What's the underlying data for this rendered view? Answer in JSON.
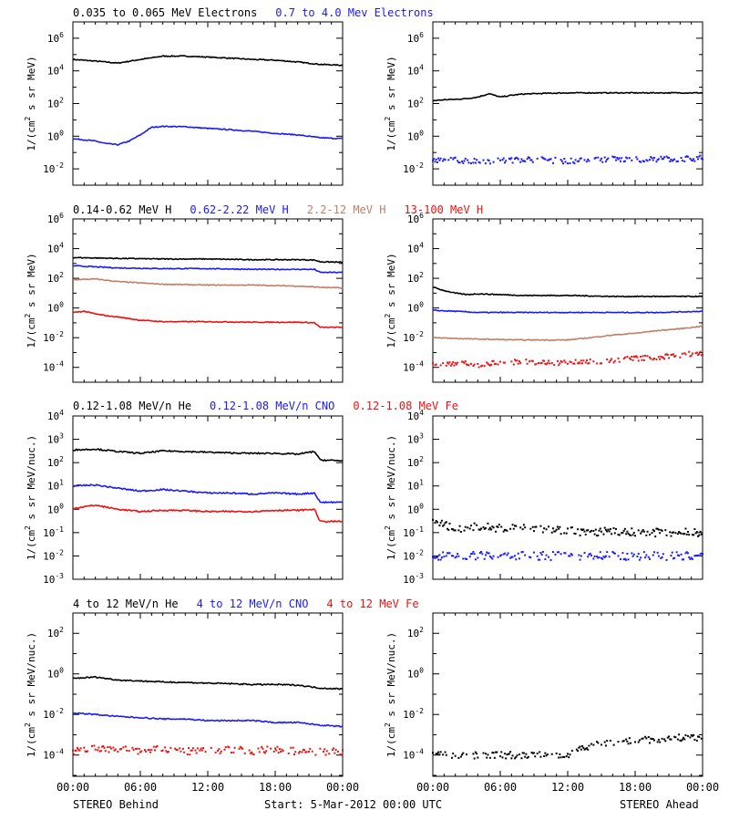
{
  "colors": {
    "black": "#000000",
    "blue": "#1a1aff",
    "tan": "#c08068",
    "red": "#ee1111",
    "frame": "#000000"
  },
  "figure": {
    "footer_left": "STEREO Behind",
    "footer_center": "Start:  5-Mar-2012 00:00 UTC",
    "footer_right": "STEREO Ahead",
    "x_ticks": [
      "00:00",
      "06:00",
      "12:00",
      "18:00",
      "00:00"
    ]
  },
  "rows": [
    {
      "legend": [
        {
          "text": "0.035 to 0.065 MeV Electrons",
          "color": "black"
        },
        {
          "text": "0.7 to 4.0 Mev Electrons",
          "color": "blue"
        }
      ],
      "ylabel_parts": [
        "1/(cm",
        "2",
        " s sr MeV)"
      ]
    },
    {
      "legend": [
        {
          "text": "0.14-0.62 MeV H",
          "color": "black"
        },
        {
          "text": "0.62-2.22 MeV H",
          "color": "blue"
        },
        {
          "text": "2.2-12 MeV H",
          "color": "tan"
        },
        {
          "text": "13-100 MeV H",
          "color": "red"
        }
      ],
      "ylabel_parts": [
        "1/(cm",
        "2",
        " s sr MeV)"
      ]
    },
    {
      "legend": [
        {
          "text": "0.12-1.08 MeV/n He",
          "color": "black"
        },
        {
          "text": "0.12-1.08 MeV/n CNO",
          "color": "blue"
        },
        {
          "text": "0.12-1.08 MeV Fe",
          "color": "red"
        }
      ],
      "ylabel_parts": [
        "1/(cm",
        "2",
        " s sr MeV/nuc.)"
      ]
    },
    {
      "legend": [
        {
          "text": "4 to 12 MeV/n He",
          "color": "black"
        },
        {
          "text": "4 to 12 MeV/n CNO",
          "color": "blue"
        },
        {
          "text": "4 to 12 MeV Fe",
          "color": "red"
        }
      ],
      "ylabel_parts": [
        "1/(cm",
        "2",
        " s sr MeV/nuc.)"
      ]
    }
  ],
  "chart_data": [
    {
      "type": "line",
      "panel": "r1-behind",
      "ylog": true,
      "ylim": [
        0.001,
        10000000
      ],
      "ytick_exponents": [
        -2,
        0,
        2,
        4,
        6
      ],
      "xlim": [
        0,
        24
      ],
      "series": [
        {
          "color": "black",
          "style": "line",
          "x": [
            0,
            2,
            4,
            6,
            8,
            10,
            12,
            14,
            16,
            18,
            20,
            22,
            24
          ],
          "y": [
            50000,
            40000,
            30000,
            50000,
            80000,
            80000,
            70000,
            60000,
            50000,
            45000,
            35000,
            25000,
            22000
          ]
        },
        {
          "color": "blue",
          "style": "line",
          "x": [
            0,
            1,
            2,
            3,
            4,
            5,
            6,
            7,
            8,
            10,
            12,
            14,
            16,
            18,
            20,
            22,
            24
          ],
          "y": [
            0.7,
            0.6,
            0.5,
            0.35,
            0.3,
            0.5,
            1.2,
            3.5,
            4,
            3.8,
            3,
            2.5,
            2,
            1.5,
            1.2,
            0.8,
            0.7
          ]
        }
      ]
    },
    {
      "type": "line",
      "panel": "r1-ahead",
      "ylog": true,
      "ylim": [
        0.001,
        10000000
      ],
      "ytick_exponents": [
        -2,
        0,
        2,
        4,
        6
      ],
      "xlim": [
        0,
        24
      ],
      "series": [
        {
          "color": "black",
          "style": "line",
          "x": [
            0,
            1,
            2,
            3,
            4,
            5,
            6,
            7,
            8,
            10,
            12,
            14,
            16,
            18,
            20,
            22,
            24
          ],
          "y": [
            150,
            170,
            180,
            200,
            250,
            400,
            250,
            320,
            380,
            420,
            450,
            450,
            450,
            450,
            450,
            450,
            450
          ]
        },
        {
          "color": "blue",
          "style": "scatter",
          "x": [
            0,
            2,
            4,
            6,
            8,
            10,
            12,
            14,
            16,
            18,
            20,
            22,
            24
          ],
          "y": [
            0.03,
            0.035,
            0.03,
            0.03,
            0.04,
            0.035,
            0.03,
            0.035,
            0.04,
            0.035,
            0.04,
            0.04,
            0.045
          ]
        }
      ]
    },
    {
      "type": "line",
      "panel": "r2-behind",
      "ylog": true,
      "ylim": [
        1e-05,
        1000000
      ],
      "ytick_exponents": [
        -4,
        -2,
        0,
        2,
        4,
        6
      ],
      "xlim": [
        0,
        24
      ],
      "series": [
        {
          "color": "black",
          "style": "line",
          "x": [
            0,
            4,
            8,
            12,
            16,
            20,
            21.5,
            22,
            24
          ],
          "y": [
            2500,
            2200,
            2000,
            2000,
            1800,
            1800,
            1700,
            1300,
            1200
          ]
        },
        {
          "color": "blue",
          "style": "line",
          "x": [
            0,
            4,
            8,
            12,
            16,
            20,
            21.5,
            22,
            24
          ],
          "y": [
            700,
            500,
            450,
            450,
            400,
            400,
            400,
            250,
            250
          ]
        },
        {
          "color": "tan",
          "style": "line",
          "x": [
            0,
            2,
            4,
            8,
            12,
            16,
            20,
            22,
            24
          ],
          "y": [
            80,
            90,
            60,
            40,
            35,
            35,
            30,
            25,
            22
          ]
        },
        {
          "color": "red",
          "style": "line",
          "x": [
            0,
            1,
            2,
            3,
            4,
            6,
            8,
            12,
            16,
            20,
            21.5,
            22,
            24
          ],
          "y": [
            0.5,
            0.6,
            0.4,
            0.3,
            0.25,
            0.15,
            0.12,
            0.12,
            0.11,
            0.11,
            0.1,
            0.05,
            0.05
          ]
        }
      ]
    },
    {
      "type": "line",
      "panel": "r2-ahead",
      "ylog": true,
      "ylim": [
        1e-05,
        1000000
      ],
      "ytick_exponents": [
        -4,
        -2,
        0,
        2,
        4,
        6
      ],
      "xlim": [
        0,
        24
      ],
      "series": [
        {
          "color": "black",
          "style": "line",
          "x": [
            0,
            1,
            2,
            3,
            4,
            6,
            8,
            12,
            16,
            20,
            24
          ],
          "y": [
            25,
            15,
            10,
            8,
            9,
            8,
            7,
            7,
            6,
            6,
            6
          ]
        },
        {
          "color": "blue",
          "style": "line",
          "x": [
            0,
            2,
            4,
            8,
            12,
            16,
            20,
            24
          ],
          "y": [
            0.7,
            0.6,
            0.5,
            0.5,
            0.5,
            0.5,
            0.5,
            0.6
          ]
        },
        {
          "color": "tan",
          "style": "line",
          "x": [
            0,
            4,
            8,
            12,
            14,
            16,
            18,
            20,
            22,
            24
          ],
          "y": [
            0.01,
            0.008,
            0.007,
            0.007,
            0.01,
            0.015,
            0.02,
            0.03,
            0.04,
            0.06
          ]
        },
        {
          "color": "red",
          "style": "scatter",
          "x": [
            0,
            2,
            4,
            6,
            8,
            10,
            12,
            14,
            16,
            18,
            20,
            22,
            24
          ],
          "y": [
            0.00015,
            0.0002,
            0.00015,
            0.0002,
            0.00025,
            0.0002,
            0.0002,
            0.00025,
            0.0003,
            0.0004,
            0.0005,
            0.0007,
            0.0009
          ]
        }
      ]
    },
    {
      "type": "line",
      "panel": "r3-behind",
      "ylog": true,
      "ylim": [
        0.001,
        10000
      ],
      "ytick_exponents": [
        -3,
        -2,
        -1,
        0,
        1,
        2,
        3,
        4
      ],
      "xlim": [
        0,
        24
      ],
      "series": [
        {
          "color": "black",
          "style": "line",
          "x": [
            0,
            2,
            4,
            6,
            8,
            10,
            12,
            14,
            16,
            18,
            20,
            21.5,
            22,
            24
          ],
          "y": [
            350,
            380,
            300,
            250,
            320,
            300,
            280,
            260,
            250,
            250,
            230,
            300,
            130,
            120
          ]
        },
        {
          "color": "blue",
          "style": "line",
          "x": [
            0,
            2,
            4,
            6,
            8,
            10,
            12,
            14,
            16,
            18,
            20,
            21.5,
            22,
            24
          ],
          "y": [
            10,
            11,
            8,
            6,
            7,
            6,
            5,
            5,
            4.5,
            5,
            4.5,
            5,
            2,
            2
          ]
        },
        {
          "color": "red",
          "style": "line",
          "x": [
            0,
            2,
            4,
            6,
            8,
            10,
            12,
            14,
            16,
            18,
            20,
            21.5,
            22,
            24
          ],
          "y": [
            1.1,
            1.5,
            1,
            0.8,
            0.9,
            0.9,
            0.8,
            0.8,
            0.8,
            0.9,
            0.9,
            1,
            0.3,
            0.3
          ]
        }
      ]
    },
    {
      "type": "scatter",
      "panel": "r3-ahead",
      "ylog": true,
      "ylim": [
        0.001,
        10000
      ],
      "ytick_exponents": [
        -3,
        -2,
        -1,
        0,
        1,
        2,
        3,
        4
      ],
      "xlim": [
        0,
        24
      ],
      "series": [
        {
          "color": "black",
          "style": "scatter",
          "x": [
            0,
            1,
            2,
            3,
            4,
            6,
            8,
            10,
            12,
            14,
            16,
            18,
            20,
            22,
            24
          ],
          "y": [
            0.3,
            0.2,
            0.15,
            0.15,
            0.2,
            0.15,
            0.2,
            0.15,
            0.12,
            0.1,
            0.12,
            0.1,
            0.1,
            0.1,
            0.1
          ]
        },
        {
          "color": "blue",
          "style": "scatter",
          "x": [
            0,
            3,
            6,
            9,
            12,
            15,
            18,
            21,
            24
          ],
          "y": [
            0.01,
            0.01,
            0.01,
            0.01,
            0.01,
            0.01,
            0.01,
            0.01,
            0.01
          ]
        }
      ]
    },
    {
      "type": "line",
      "panel": "r4-behind",
      "ylog": true,
      "ylim": [
        9e-06,
        1000
      ],
      "ytick_exponents": [
        -4,
        -2,
        0,
        2
      ],
      "xlim": [
        0,
        24
      ],
      "series": [
        {
          "color": "black",
          "style": "line",
          "x": [
            0,
            2,
            4,
            6,
            8,
            10,
            12,
            14,
            16,
            18,
            20,
            22,
            24
          ],
          "y": [
            0.6,
            0.7,
            0.5,
            0.45,
            0.4,
            0.38,
            0.35,
            0.33,
            0.3,
            0.3,
            0.28,
            0.2,
            0.18
          ]
        },
        {
          "color": "blue",
          "style": "line",
          "x": [
            0,
            2,
            4,
            6,
            8,
            10,
            12,
            14,
            16,
            18,
            20,
            22,
            24
          ],
          "y": [
            0.012,
            0.01,
            0.008,
            0.007,
            0.006,
            0.006,
            0.005,
            0.005,
            0.005,
            0.004,
            0.004,
            0.003,
            0.0025
          ]
        },
        {
          "color": "red",
          "style": "scatter",
          "x": [
            0,
            2,
            4,
            6,
            8,
            10,
            12,
            14,
            16,
            18,
            20,
            22,
            24
          ],
          "y": [
            0.00015,
            0.0002,
            0.0002,
            0.00015,
            0.0002,
            0.00015,
            0.00015,
            0.0002,
            0.00015,
            0.0002,
            0.00015,
            0.00015,
            0.00015
          ]
        }
      ]
    },
    {
      "type": "scatter",
      "panel": "r4-ahead",
      "ylog": true,
      "ylim": [
        9e-06,
        1000
      ],
      "ytick_exponents": [
        -4,
        -2,
        0,
        2
      ],
      "xlim": [
        0,
        24
      ],
      "series": [
        {
          "color": "black",
          "style": "scatter",
          "x": [
            0,
            2,
            4,
            6,
            8,
            10,
            12,
            13,
            14,
            16,
            18,
            20,
            22,
            24
          ],
          "y": [
            0.0001,
            0.0001,
            0.0001,
            0.0001,
            0.0001,
            0.0001,
            0.0001,
            0.0002,
            0.0003,
            0.0004,
            0.0005,
            0.0006,
            0.0007,
            0.0008
          ]
        }
      ]
    }
  ]
}
